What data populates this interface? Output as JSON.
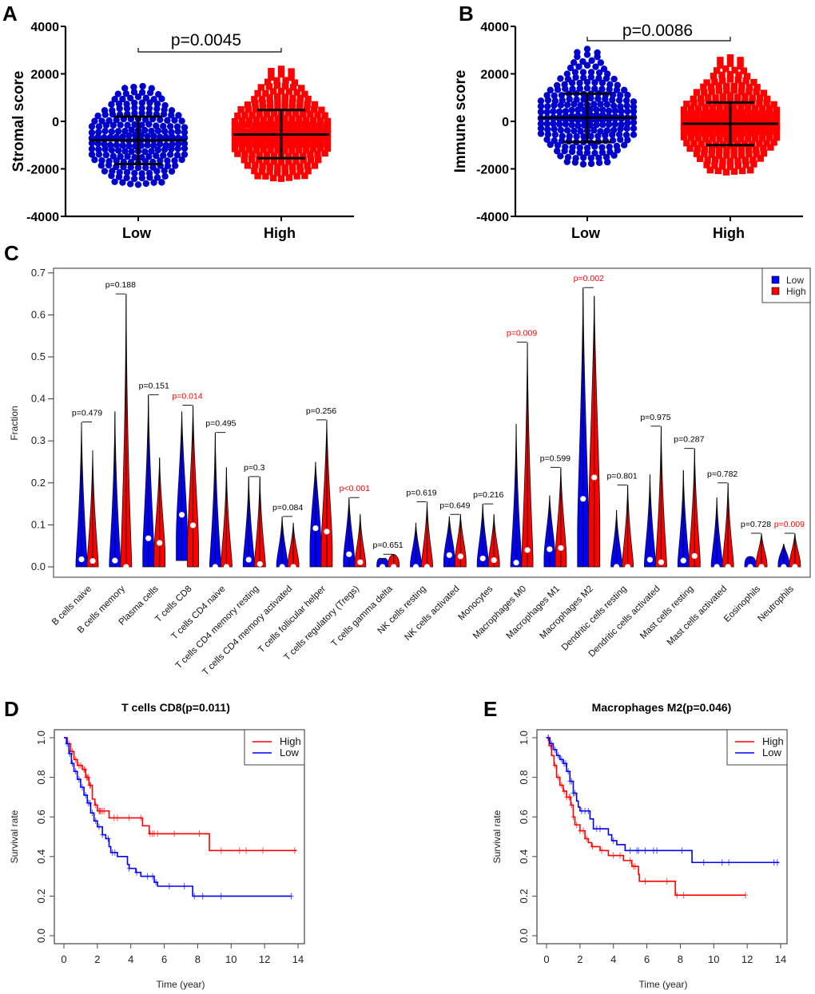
{
  "colors": {
    "low": "#0000cc",
    "high": "#ff0000",
    "low_violin": "#0000ff",
    "sig_p": "#ff0000",
    "nonsig_p": "#000000"
  },
  "chart_data": [
    {
      "panel": "A",
      "type": "scatter",
      "title": "",
      "ylabel": "Stromal score",
      "xlabel": "",
      "categories": [
        "Low",
        "High"
      ],
      "ylim": [
        -4000,
        4000
      ],
      "yticks": [
        4000,
        2000,
        0,
        -2000,
        -4000
      ],
      "pvalue_label": "p=0.0045",
      "series": [
        {
          "name": "Low",
          "marker": "circle",
          "mean": -800,
          "sd_upper": 200,
          "sd_lower": -1800,
          "min": -2650,
          "max": 1650
        },
        {
          "name": "High",
          "marker": "square",
          "mean": -550,
          "sd_upper": 480,
          "sd_lower": -1550,
          "min": -2400,
          "max": 2200
        }
      ]
    },
    {
      "panel": "B",
      "type": "scatter",
      "title": "",
      "ylabel": "Immune score",
      "xlabel": "",
      "categories": [
        "Low",
        "High"
      ],
      "ylim": [
        -4000,
        4000
      ],
      "yticks": [
        4000,
        2000,
        0,
        -2000,
        -4000
      ],
      "pvalue_label": "p=0.0086",
      "series": [
        {
          "name": "Low",
          "marker": "circle",
          "mean": 150,
          "sd_upper": 1170,
          "sd_lower": -870,
          "min": -1800,
          "max": 3100
        },
        {
          "name": "High",
          "marker": "square",
          "mean": -100,
          "sd_upper": 800,
          "sd_lower": -1000,
          "min": -2150,
          "max": 2750
        }
      ]
    },
    {
      "panel": "C",
      "type": "violin",
      "ylabel": "Fraction",
      "xlabel": "",
      "ylim": [
        0,
        0.7
      ],
      "yticks": [
        0.0,
        0.1,
        0.2,
        0.3,
        0.4,
        0.5,
        0.6,
        0.7
      ],
      "legend": {
        "position": "top-right",
        "entries": [
          "Low",
          "High"
        ]
      },
      "categories": [
        "B cells naive",
        "B cells memory",
        "Plasma cells",
        "T cells CD8",
        "T cells CD4 naive",
        "T cells CD4 memory resting",
        "T cells CD4 memory activated",
        "T cells follicular helper",
        "T cells regulatory (Tregs)",
        "T cells gamma delta",
        "NK cells resting",
        "NK cells activated",
        "Monocytes",
        "Macrophages M0",
        "Macrophages M1",
        "Macrophages M2",
        "Dendritic cells resting",
        "Dendritic cells activated",
        "Mast cells resting",
        "Mast cells activated",
        "Eosinophils",
        "Neutrophils"
      ],
      "pvalues": [
        "p=0.479",
        "p=0.188",
        "p=0.151",
        "p=0.014",
        "p=0.495",
        "p=0.3",
        "p=0.084",
        "p=0.256",
        "p<0.001",
        "p=0.651",
        "p=0.619",
        "p=0.649",
        "p=0.216",
        "p=0.009",
        "p=0.599",
        "p=0.002",
        "p=0.801",
        "p=0.975",
        "p=0.287",
        "p=0.782",
        "p=0.728",
        "p=0.009"
      ],
      "significant": [
        false,
        false,
        false,
        true,
        false,
        false,
        false,
        false,
        true,
        false,
        false,
        false,
        false,
        true,
        false,
        true,
        false,
        false,
        false,
        false,
        false,
        true
      ],
      "series": [
        {
          "name": "Low",
          "max": [
            0.345,
            0.37,
            0.41,
            0.37,
            0.32,
            0.215,
            0.12,
            0.25,
            0.165,
            0.02,
            0.105,
            0.12,
            0.15,
            0.34,
            0.17,
            0.665,
            0.135,
            0.22,
            0.23,
            0.165,
            0.025,
            0.055
          ],
          "min": [
            0.0,
            0.0,
            0.0,
            0.015,
            0.0,
            0.0,
            0.0,
            0.0,
            0.0,
            0.0,
            0.0,
            0.0,
            0.0,
            0.0,
            0.0,
            0.0,
            0.0,
            0.0,
            0.0,
            0.0,
            0.0,
            0.0
          ],
          "median": [
            0.018,
            0.015,
            0.068,
            0.124,
            0.0,
            0.017,
            0.0,
            0.092,
            0.03,
            0.0,
            0.0,
            0.028,
            0.02,
            0.01,
            0.042,
            0.162,
            0.0,
            0.017,
            0.015,
            0.0,
            0.0,
            0.0
          ]
        },
        {
          "name": "High",
          "max": [
            0.277,
            0.65,
            0.26,
            0.385,
            0.237,
            0.215,
            0.105,
            0.35,
            0.125,
            0.03,
            0.155,
            0.125,
            0.125,
            0.535,
            0.237,
            0.645,
            0.195,
            0.335,
            0.282,
            0.2,
            0.08,
            0.08
          ],
          "min": [
            0.0,
            0.0,
            0.0,
            0.0,
            0.0,
            0.0,
            0.0,
            0.0,
            0.0,
            0.0,
            0.0,
            0.0,
            0.0,
            0.0,
            0.0,
            0.0,
            0.0,
            0.0,
            0.0,
            0.0,
            0.0,
            0.0
          ],
          "median": [
            0.014,
            0.0,
            0.057,
            0.099,
            0.0,
            0.007,
            0.0,
            0.084,
            0.011,
            0.0,
            0.0,
            0.025,
            0.016,
            0.04,
            0.045,
            0.213,
            0.0,
            0.011,
            0.026,
            0.0,
            0.0,
            0.0
          ]
        }
      ]
    },
    {
      "panel": "D",
      "type": "line",
      "title": "T cells CD8(p=0.011)",
      "xlabel": "Time (year)",
      "ylabel": "Survival rate",
      "xlim": [
        0,
        14
      ],
      "ylim": [
        0,
        1
      ],
      "xticks": [
        0,
        2,
        4,
        6,
        8,
        10,
        12,
        14
      ],
      "yticks": [
        "0.0",
        "0.2",
        "0.4",
        "0.6",
        "0.8",
        "1.0"
      ],
      "legend": {
        "position": "top-right",
        "entries": [
          "High",
          "Low"
        ]
      },
      "series": [
        {
          "name": "High",
          "steps": [
            [
              0,
              1.0
            ],
            [
              0.2,
              0.97
            ],
            [
              0.4,
              0.93
            ],
            [
              0.6,
              0.89
            ],
            [
              0.8,
              0.86
            ],
            [
              1.1,
              0.84
            ],
            [
              1.3,
              0.8
            ],
            [
              1.5,
              0.76
            ],
            [
              1.7,
              0.69
            ],
            [
              1.85,
              0.66
            ],
            [
              2.0,
              0.63
            ],
            [
              2.7,
              0.595
            ],
            [
              4.7,
              0.555
            ],
            [
              5.1,
              0.515
            ],
            [
              8.7,
              0.43
            ],
            [
              13.9,
              0.43
            ]
          ],
          "censor": [
            0.3,
            0.5,
            0.7,
            0.9,
            1.0,
            1.2,
            1.25,
            1.35,
            1.4,
            1.45,
            1.55,
            1.6,
            1.9,
            2.1,
            2.15,
            2.2,
            2.3,
            2.4,
            3.0,
            3.2,
            3.9,
            4.6,
            5.15,
            5.3,
            5.4,
            5.6,
            6.6,
            8.1,
            9.4,
            10.5,
            10.9,
            11.9,
            13.8
          ]
        },
        {
          "name": "Low",
          "steps": [
            [
              0,
              1.0
            ],
            [
              0.15,
              0.97
            ],
            [
              0.3,
              0.92
            ],
            [
              0.45,
              0.87
            ],
            [
              0.6,
              0.83
            ],
            [
              0.8,
              0.79
            ],
            [
              1.0,
              0.75
            ],
            [
              1.2,
              0.71
            ],
            [
              1.4,
              0.67
            ],
            [
              1.6,
              0.62
            ],
            [
              1.8,
              0.58
            ],
            [
              2.0,
              0.55
            ],
            [
              2.3,
              0.51
            ],
            [
              2.5,
              0.49
            ],
            [
              2.7,
              0.45
            ],
            [
              2.8,
              0.42
            ],
            [
              3.2,
              0.4
            ],
            [
              3.8,
              0.36
            ],
            [
              3.9,
              0.34
            ],
            [
              4.3,
              0.32
            ],
            [
              4.6,
              0.3
            ],
            [
              5.4,
              0.27
            ],
            [
              5.6,
              0.25
            ],
            [
              7.7,
              0.2
            ],
            [
              13.6,
              0.2
            ]
          ],
          "censor": [
            0.2,
            0.35,
            0.5,
            0.7,
            0.9,
            1.1,
            1.3,
            1.45,
            1.55,
            1.7,
            1.9,
            2.1,
            2.3,
            2.65,
            2.9,
            3.05,
            3.9,
            4.35,
            5.0,
            5.3,
            5.5,
            6.3,
            7.2,
            7.8,
            8.3,
            9.4,
            13.6
          ]
        }
      ]
    },
    {
      "panel": "E",
      "type": "line",
      "title": "Macrophages M2(p=0.046)",
      "xlabel": "Time (year)",
      "ylabel": "Survival rate",
      "xlim": [
        0,
        14
      ],
      "ylim": [
        0,
        1
      ],
      "xticks": [
        0,
        2,
        4,
        6,
        8,
        10,
        12,
        14
      ],
      "yticks": [
        "0.0",
        "0.2",
        "0.4",
        "0.6",
        "0.8",
        "1.0"
      ],
      "legend": {
        "position": "top-right",
        "entries": [
          "High",
          "Low"
        ]
      },
      "series": [
        {
          "name": "High",
          "steps": [
            [
              0,
              1.0
            ],
            [
              0.15,
              0.96
            ],
            [
              0.3,
              0.91
            ],
            [
              0.45,
              0.86
            ],
            [
              0.6,
              0.8
            ],
            [
              0.8,
              0.76
            ],
            [
              1.0,
              0.73
            ],
            [
              1.2,
              0.7
            ],
            [
              1.45,
              0.66
            ],
            [
              1.6,
              0.6
            ],
            [
              1.7,
              0.56
            ],
            [
              2.0,
              0.53
            ],
            [
              2.3,
              0.49
            ],
            [
              2.5,
              0.47
            ],
            [
              2.7,
              0.45
            ],
            [
              3.2,
              0.43
            ],
            [
              3.7,
              0.405
            ],
            [
              4.6,
              0.38
            ],
            [
              5.1,
              0.35
            ],
            [
              5.5,
              0.31
            ],
            [
              5.55,
              0.275
            ],
            [
              7.7,
              0.205
            ],
            [
              11.9,
              0.205
            ]
          ],
          "censor": [
            0.1,
            0.25,
            0.5,
            0.7,
            0.9,
            1.05,
            1.2,
            1.35,
            1.4,
            1.5,
            1.6,
            1.8,
            2.0,
            2.2,
            2.4,
            2.75,
            3.3,
            4.0,
            4.4,
            5.0,
            5.2,
            5.3,
            5.9,
            7.2,
            7.8,
            8.2,
            11.9
          ]
        },
        {
          "name": "Low",
          "steps": [
            [
              0,
              1.0
            ],
            [
              0.2,
              0.97
            ],
            [
              0.4,
              0.94
            ],
            [
              0.6,
              0.91
            ],
            [
              0.8,
              0.89
            ],
            [
              1.0,
              0.87
            ],
            [
              1.2,
              0.83
            ],
            [
              1.4,
              0.78
            ],
            [
              1.6,
              0.72
            ],
            [
              1.8,
              0.68
            ],
            [
              1.9,
              0.65
            ],
            [
              2.0,
              0.63
            ],
            [
              2.6,
              0.59
            ],
            [
              2.8,
              0.54
            ],
            [
              3.7,
              0.51
            ],
            [
              3.9,
              0.48
            ],
            [
              4.2,
              0.46
            ],
            [
              4.7,
              0.43
            ],
            [
              8.7,
              0.37
            ],
            [
              13.9,
              0.37
            ]
          ],
          "censor": [
            0.1,
            0.3,
            0.5,
            0.7,
            0.9,
            1.05,
            1.15,
            1.3,
            1.4,
            1.5,
            1.6,
            1.7,
            2.1,
            2.3,
            2.5,
            3.0,
            3.2,
            4.0,
            5.0,
            5.4,
            5.5,
            5.9,
            6.4,
            6.6,
            8.1,
            9.4,
            10.5,
            10.9,
            13.6,
            13.8
          ]
        }
      ]
    }
  ],
  "panels": {
    "A": {
      "letter": "A"
    },
    "B": {
      "letter": "B"
    },
    "C": {
      "letter": "C"
    },
    "D": {
      "letter": "D"
    },
    "E": {
      "letter": "E"
    }
  }
}
